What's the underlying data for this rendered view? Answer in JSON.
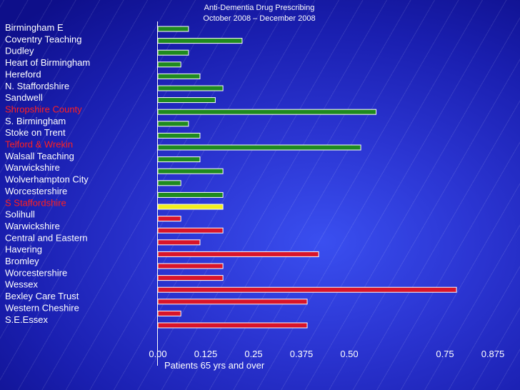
{
  "chart_data": {
    "type": "bar",
    "orientation": "horizontal",
    "title": "Anti-Dementia Drug Prescribing",
    "subtitle": "October 2008 – December 2008",
    "xlabel": "Patients 65 yrs and over",
    "xlim": [
      0,
      0.875
    ],
    "x_ticks": [
      0.0,
      0.125,
      0.25,
      0.375,
      0.5,
      0.75,
      0.875
    ],
    "x_tick_labels": [
      "0.00",
      "0.125",
      "0.25",
      "0.375",
      "0.50",
      "0.75",
      "0.875"
    ],
    "categories": [
      "Birmingham E",
      "Coventry Teaching",
      "Dudley",
      "Heart of Birmingham",
      "Hereford",
      "N. Staffordshire",
      "Sandwell",
      "Shropshire County",
      "S. Birmingham",
      "Stoke on Trent",
      "Telford & Wrekin",
      "Walsall Teaching",
      "Warwickshire",
      "Wolverhampton City",
      "Worcestershire",
      "S Staffordshire",
      "Solihull",
      "Warwickshire",
      "Central and Eastern",
      "Havering",
      "Bromley",
      "Worcestershire",
      "Wessex",
      "Bexley Care Trust",
      "Western Cheshire",
      "S.E.Essex"
    ],
    "highlighted_categories": [
      "Shropshire County",
      "Telford & Wrekin",
      "S Staffordshire"
    ],
    "values": [
      0.08,
      0.22,
      0.08,
      0.06,
      0.11,
      0.17,
      0.15,
      0.57,
      0.08,
      0.11,
      0.53,
      0.11,
      0.17,
      0.06,
      0.17,
      0.17,
      0.06,
      0.17,
      0.11,
      0.42,
      0.17,
      0.17,
      0.78,
      0.39,
      0.06,
      0.39
    ],
    "bar_colors": [
      "#1f8a1f",
      "#1f8a1f",
      "#1f8a1f",
      "#1f8a1f",
      "#1f8a1f",
      "#1f8a1f",
      "#1f8a1f",
      "#1f8a1f",
      "#1f8a1f",
      "#1f8a1f",
      "#1f8a1f",
      "#1f8a1f",
      "#1f8a1f",
      "#1f8a1f",
      "#1f8a1f",
      "#f2ee1c",
      "#d8142a",
      "#d8142a",
      "#d8142a",
      "#d8142a",
      "#d8142a",
      "#d8142a",
      "#d8142a",
      "#d8142a",
      "#d8142a",
      "#d8142a"
    ],
    "label_color": "#ffffff",
    "highlight_label_color": "#ff2020"
  }
}
